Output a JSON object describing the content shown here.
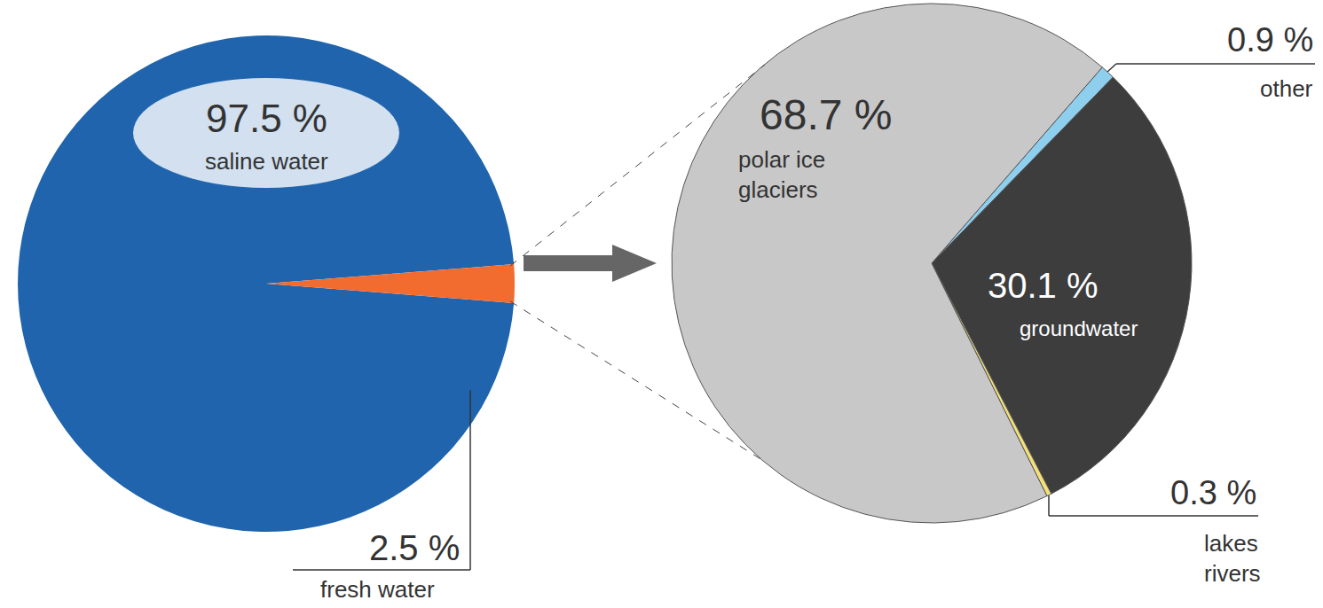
{
  "chart_data": [
    {
      "type": "pie",
      "categories": [
        "saline water",
        "fresh water"
      ],
      "values": [
        97.5,
        2.5
      ],
      "value_labels": [
        "97.5 %",
        "2.5 %"
      ],
      "colors": [
        "#1f64ad",
        "#f26b2f"
      ],
      "data_labels": true
    },
    {
      "type": "pie",
      "categories": [
        "other",
        "groundwater",
        "lakes rivers",
        "polar ice glaciers"
      ],
      "values": [
        0.9,
        30.1,
        0.3,
        68.7
      ],
      "value_labels": [
        "0.9 %",
        "30.1 %",
        "0.3 %",
        "68.7 %"
      ],
      "colors": [
        "#8ecfee",
        "#3d3d3d",
        "#f3e07a",
        "#c8c8c8"
      ],
      "data_labels": true
    }
  ]
}
